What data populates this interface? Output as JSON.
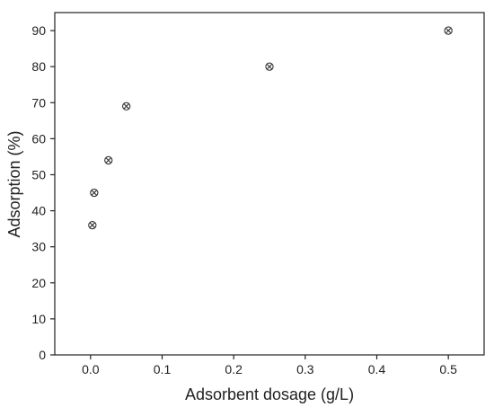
{
  "chart_data": {
    "type": "scatter",
    "title": "",
    "xlabel": "Adsorbent dosage (g/L)",
    "ylabel": "Adsorption (%)",
    "xlim": [
      -0.05,
      0.55
    ],
    "ylim": [
      0,
      95
    ],
    "x_ticks": [
      0.0,
      0.1,
      0.2,
      0.3,
      0.4,
      0.5
    ],
    "x_tick_labels": [
      "0.0",
      "0.1",
      "0.2",
      "0.3",
      "0.4",
      "0.5"
    ],
    "y_ticks": [
      0,
      10,
      20,
      30,
      40,
      50,
      60,
      70,
      80,
      90
    ],
    "y_tick_labels": [
      "0",
      "10",
      "20",
      "30",
      "40",
      "50",
      "60",
      "70",
      "80",
      "90"
    ],
    "grid": false,
    "legend": "none",
    "series": [
      {
        "points": [
          {
            "x": 0.0025,
            "y": 36
          },
          {
            "x": 0.005,
            "y": 45
          },
          {
            "x": 0.025,
            "y": 54
          },
          {
            "x": 0.05,
            "y": 69
          },
          {
            "x": 0.25,
            "y": 80
          },
          {
            "x": 0.5,
            "y": 90
          }
        ],
        "marker": "circle-x",
        "color": "#333333"
      }
    ]
  }
}
